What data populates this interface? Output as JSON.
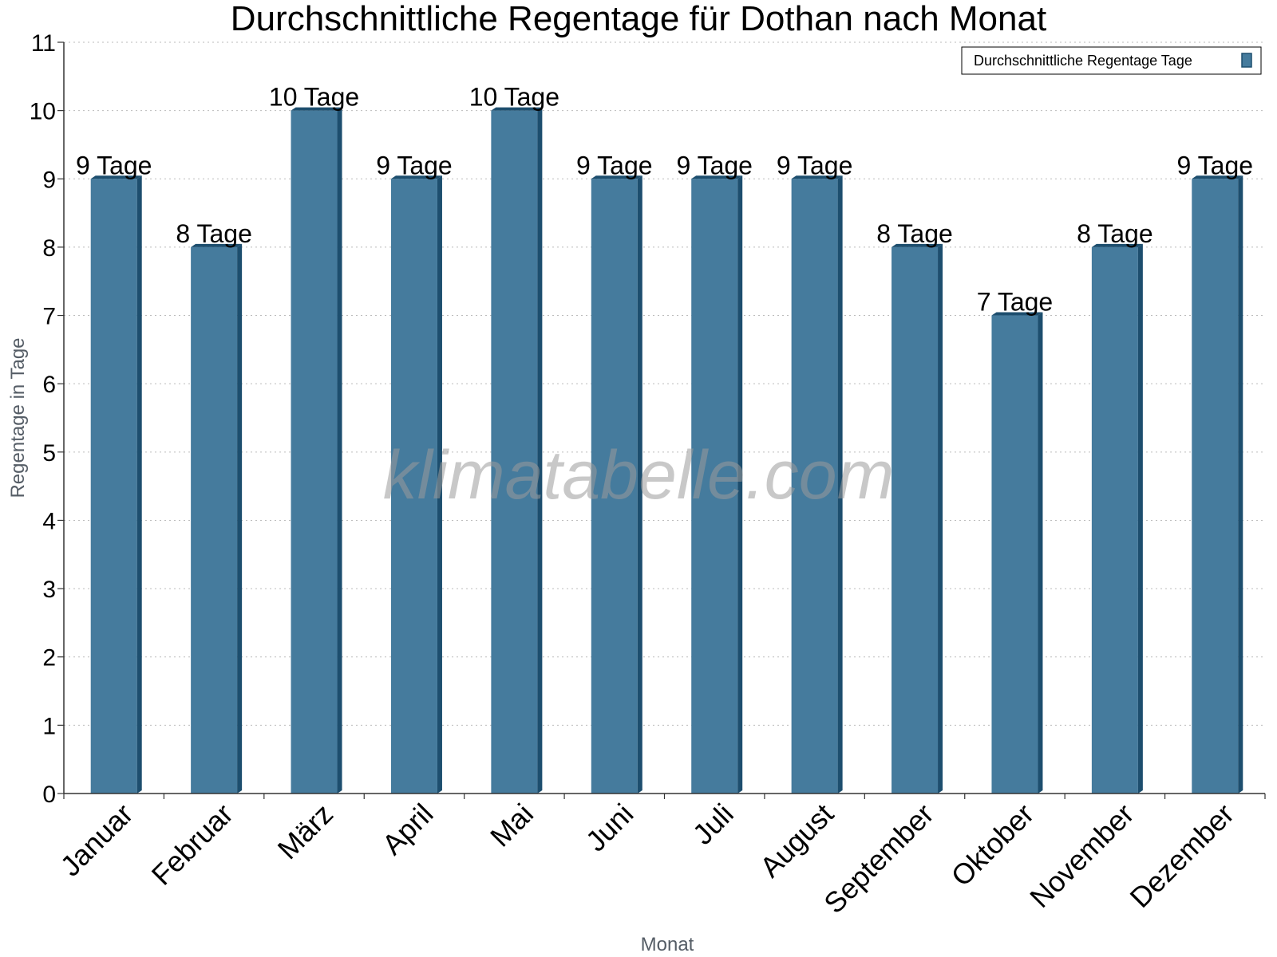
{
  "chart_data": {
    "type": "bar",
    "title": "Durchschnittliche Regentage für Dothan nach Monat",
    "xlabel": "Monat",
    "ylabel": "Regentage in Tage",
    "ylim": [
      0,
      11
    ],
    "yticks": [
      "0",
      "1",
      "2",
      "3",
      "4",
      "5",
      "6",
      "7",
      "8",
      "9",
      "10",
      "11"
    ],
    "grid": "horizontal dotted",
    "legend_position": "top-right",
    "categories": [
      "Januar",
      "Februar",
      "März",
      "April",
      "Mai",
      "Juni",
      "Juli",
      "August",
      "September",
      "Oktober",
      "November",
      "Dezember"
    ],
    "series": [
      {
        "name": "Durchschnittliche Regentage Tage",
        "values": [
          9,
          8,
          10,
          9,
          10,
          9,
          9,
          9,
          8,
          7,
          8,
          9
        ],
        "labels": [
          "9 Tage",
          "8 Tage",
          "10 Tage",
          "9 Tage",
          "10 Tage",
          "9 Tage",
          "9 Tage",
          "9 Tage",
          "8 Tage",
          "7 Tage",
          "8 Tage",
          "9 Tage"
        ],
        "color": "#457b9d",
        "side_color": "#1d4e6e"
      }
    ],
    "watermark": "klimatabelle.com"
  }
}
